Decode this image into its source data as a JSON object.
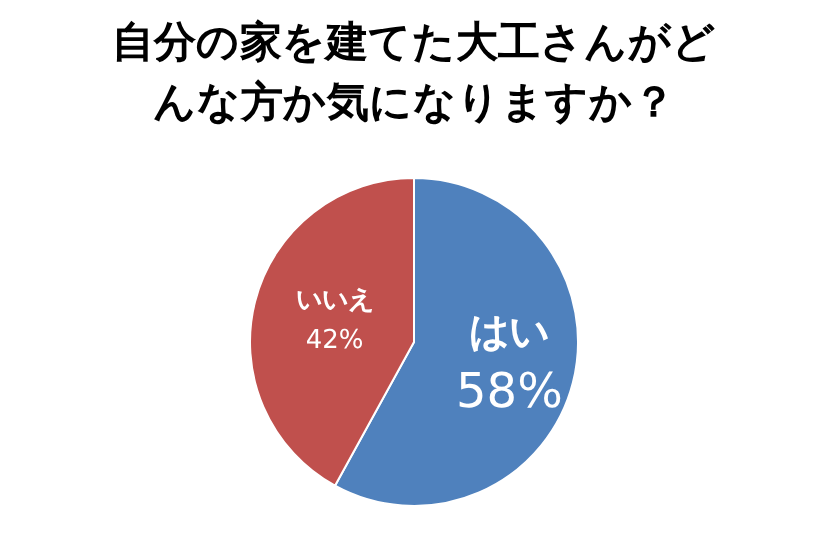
{
  "chart_data": {
    "type": "pie",
    "title": "自分の家を建てた大工さんがどんな方か気になりますか？",
    "categories": [
      "はい",
      "いいえ"
    ],
    "values": [
      58,
      42
    ],
    "colors": [
      "#4f81bd",
      "#c0504d"
    ],
    "value_labels": [
      "58%",
      "42%"
    ],
    "legend": false
  }
}
